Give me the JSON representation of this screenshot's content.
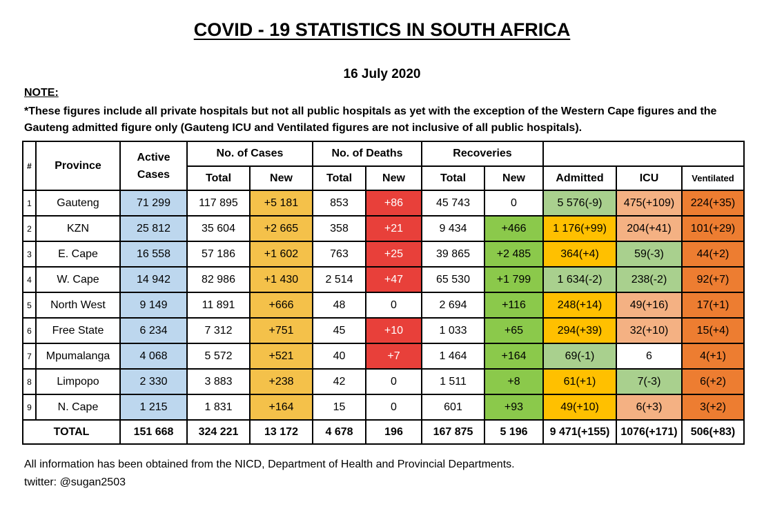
{
  "title": "COVID - 19 STATISTICS IN SOUTH AFRICA",
  "date": "16 July 2020",
  "note_heading": "NOTE:",
  "note_text": "*These figures include all private hospitals but not all public hospitals as yet with the exception of the Western Cape figures and the Gauteng admitted figure only (Gauteng ICU and Ventilated figures are not inclusive of all public hospitals).",
  "headers": {
    "num": "#",
    "province": "Province",
    "active_cases": "Active Cases",
    "cases_group": "No. of Cases",
    "deaths_group": "No. of Deaths",
    "recoveries_group": "Recoveries",
    "total": "Total",
    "new": "New",
    "admitted": "Admitted",
    "icu": "ICU",
    "ventilated": "Ventilated"
  },
  "rows": [
    {
      "num": "1",
      "province": "Gauteng",
      "active": "71 299",
      "cases_total": "117 895",
      "cases_new": "+5 181",
      "deaths_total": "853",
      "deaths_new": "+86",
      "rec_total": "45 743",
      "rec_new": "0",
      "admitted": "5 576(-9)",
      "icu": "475(+109)",
      "ventilated": "224(+35)"
    },
    {
      "num": "2",
      "province": "KZN",
      "active": "25 812",
      "cases_total": "35 604",
      "cases_new": "+2 665",
      "deaths_total": "358",
      "deaths_new": "+21",
      "rec_total": "9 434",
      "rec_new": "+466",
      "admitted": "1 176(+99)",
      "icu": "204(+41)",
      "ventilated": "101(+29)"
    },
    {
      "num": "3",
      "province": "E. Cape",
      "active": "16 558",
      "cases_total": "57 186",
      "cases_new": "+1 602",
      "deaths_total": "763",
      "deaths_new": "+25",
      "rec_total": "39 865",
      "rec_new": "+2 485",
      "admitted": "364(+4)",
      "icu": "59(-3)",
      "ventilated": "44(+2)"
    },
    {
      "num": "4",
      "province": "W. Cape",
      "active": "14 942",
      "cases_total": "82 986",
      "cases_new": "+1 430",
      "deaths_total": "2 514",
      "deaths_new": "+47",
      "rec_total": "65 530",
      "rec_new": "+1 799",
      "admitted": "1 634(-2)",
      "icu": "238(-2)",
      "ventilated": "92(+7)"
    },
    {
      "num": "5",
      "province": "North West",
      "active": "9 149",
      "cases_total": "11 891",
      "cases_new": "+666",
      "deaths_total": "48",
      "deaths_new": "0",
      "rec_total": "2 694",
      "rec_new": "+116",
      "admitted": "248(+14)",
      "icu": "49(+16)",
      "ventilated": "17(+1)"
    },
    {
      "num": "6",
      "province": "Free State",
      "active": "6 234",
      "cases_total": "7 312",
      "cases_new": "+751",
      "deaths_total": "45",
      "deaths_new": "+10",
      "rec_total": "1 033",
      "rec_new": "+65",
      "admitted": "294(+39)",
      "icu": "32(+10)",
      "ventilated": "15(+4)"
    },
    {
      "num": "7",
      "province": "Mpumalanga",
      "active": "4 068",
      "cases_total": "5 572",
      "cases_new": "+521",
      "deaths_total": "40",
      "deaths_new": "+7",
      "rec_total": "1 464",
      "rec_new": "+164",
      "admitted": "69(-1)",
      "icu": "6",
      "ventilated": "4(+1)"
    },
    {
      "num": "8",
      "province": "Limpopo",
      "active": "2 330",
      "cases_total": "3 883",
      "cases_new": "+238",
      "deaths_total": "42",
      "deaths_new": "0",
      "rec_total": "1 511",
      "rec_new": "+8",
      "admitted": "61(+1)",
      "icu": "7(-3)",
      "ventilated": "6(+2)"
    },
    {
      "num": "9",
      "province": "N. Cape",
      "active": "1 215",
      "cases_total": "1 831",
      "cases_new": "+164",
      "deaths_total": "15",
      "deaths_new": "0",
      "rec_total": "601",
      "rec_new": "+93",
      "admitted": "49(+10)",
      "icu": "6(+3)",
      "ventilated": "3(+2)"
    }
  ],
  "total_row": {
    "label": "TOTAL",
    "active": "151 668",
    "cases_total": "324 221",
    "cases_new": "13 172",
    "deaths_total": "4 678",
    "deaths_new": "196",
    "rec_total": "167 875",
    "rec_new": "5 196",
    "admitted": "9 471(+155)",
    "icu": "1076(+171)",
    "ventilated": "506(+83)"
  },
  "footer": {
    "source": "All information has been obtained from the NICD, Department of Health and Provincial Departments.",
    "twitter": "twitter: @sugan2503"
  }
}
